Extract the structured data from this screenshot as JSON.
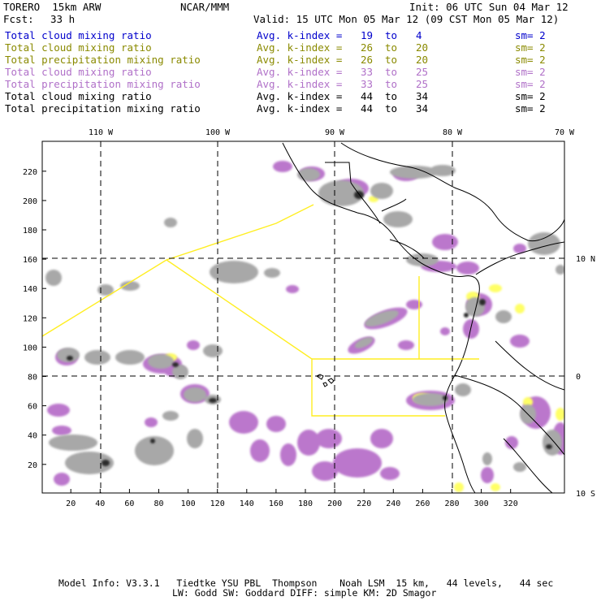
{
  "header": {
    "title": "TORERO  15km ARW",
    "center": "NCAR/MMM",
    "init": "Init: 06 UTC Sun 04 Mar 12",
    "fcst_label": "Fcst:",
    "fcst_value": "33 h",
    "valid": "Valid: 15 UTC Mon 05 Mar 12 (09 CST Mon 05 Mar 12)"
  },
  "legend": [
    {
      "field": "Total cloud mixing ratio",
      "kindex": "Avg. k-index =",
      "from": "19",
      "to_word": "to",
      "to": "4",
      "sm": "sm= 2",
      "color": "#0000cc"
    },
    {
      "field": "Total cloud mixing ratio",
      "kindex": "Avg. k-index =",
      "from": "26",
      "to_word": "to",
      "to": "20",
      "sm": "sm= 2",
      "color": "#8a8a00"
    },
    {
      "field": "Total precipitation mixing ratio",
      "kindex": "Avg. k-index =",
      "from": "26",
      "to_word": "to",
      "to": "20",
      "sm": "sm= 2",
      "color": "#8a8a00"
    },
    {
      "field": "Total cloud mixing ratio",
      "kindex": "Avg. k-index =",
      "from": "33",
      "to_word": "to",
      "to": "25",
      "sm": "sm= 2",
      "color": "#b070c8"
    },
    {
      "field": "Total precipitation mixing ratio",
      "kindex": "Avg. k-index =",
      "from": "33",
      "to_word": "to",
      "to": "25",
      "sm": "sm= 2",
      "color": "#b070c8"
    },
    {
      "field": "Total cloud mixing ratio",
      "kindex": "Avg. k-index =",
      "from": "44",
      "to_word": "to",
      "to": "34",
      "sm": "sm= 2",
      "color": "#000000"
    },
    {
      "field": "Total precipitation mixing ratio",
      "kindex": "Avg. k-index =",
      "from": "44",
      "to_word": "to",
      "to": "34",
      "sm": "sm= 2",
      "color": "#000000"
    }
  ],
  "map": {
    "lon_labels": [
      "110 W",
      "100 W",
      "90 W",
      "80 W",
      "70 W"
    ],
    "lat_labels": [
      "10 N",
      "0",
      "10 S"
    ],
    "x_ticks": [
      "20",
      "40",
      "60",
      "80",
      "100",
      "120",
      "140",
      "160",
      "180",
      "200",
      "220",
      "240",
      "260",
      "280",
      "300",
      "320"
    ],
    "y_ticks": [
      "20",
      "40",
      "60",
      "80",
      "100",
      "120",
      "140",
      "160",
      "180",
      "200",
      "220"
    ],
    "colors": {
      "gray_cloud": "#a8a8a8",
      "dark_cloud": "#2a2a2a",
      "purple": "#bb77cc",
      "yellow": "#ffff66",
      "cyan": "#99eeff",
      "boundary": "#ffee22"
    }
  },
  "footer": {
    "line1": "Model Info: V3.3.1   Tiedtke YSU PBL  Thompson    Noah LSM  15 km,   44 levels,   44 sec",
    "line2": "LW: Godd SW: Goddard DIFF: simple KM: 2D Smagor"
  }
}
